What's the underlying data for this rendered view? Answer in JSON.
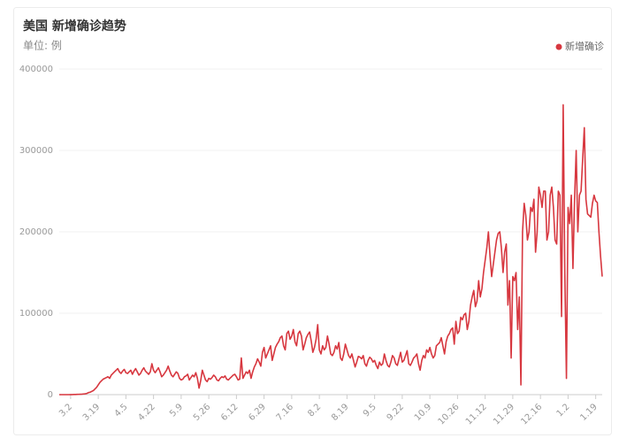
{
  "chart_data": {
    "type": "line",
    "title": "美国 新增确诊趋势",
    "subtitle": "单位: 例",
    "categories": [
      null,
      null,
      null,
      null,
      null,
      null,
      null,
      "3.2",
      null,
      null,
      null,
      null,
      null,
      null,
      null,
      null,
      null,
      null,
      null,
      null,
      null,
      null,
      null,
      null,
      "3.19",
      null,
      null,
      null,
      null,
      null,
      null,
      null,
      null,
      null,
      null,
      null,
      null,
      null,
      null,
      null,
      null,
      "4.5",
      null,
      null,
      null,
      null,
      null,
      null,
      null,
      null,
      null,
      null,
      null,
      null,
      null,
      null,
      null,
      null,
      "4.22",
      null,
      null,
      null,
      null,
      null,
      null,
      null,
      null,
      null,
      null,
      null,
      null,
      null,
      null,
      null,
      null,
      "5.9",
      null,
      null,
      null,
      null,
      null,
      null,
      null,
      null,
      null,
      null,
      null,
      null,
      null,
      null,
      null,
      null,
      "5.26",
      null,
      null,
      null,
      null,
      null,
      null,
      null,
      null,
      null,
      null,
      null,
      null,
      null,
      null,
      null,
      null,
      "6.12",
      null,
      null,
      null,
      null,
      null,
      null,
      null,
      null,
      null,
      null,
      null,
      null,
      null,
      null,
      null,
      null,
      "6.29",
      null,
      null,
      null,
      null,
      null,
      null,
      null,
      null,
      null,
      null,
      null,
      null,
      null,
      null,
      null,
      null,
      "7.16",
      null,
      null,
      null,
      null,
      null,
      null,
      null,
      null,
      null,
      null,
      null,
      null,
      null,
      null,
      null,
      null,
      "8.2",
      null,
      null,
      null,
      null,
      null,
      null,
      null,
      null,
      null,
      null,
      null,
      null,
      null,
      null,
      null,
      null,
      "8.19",
      null,
      null,
      null,
      null,
      null,
      null,
      null,
      null,
      null,
      null,
      null,
      null,
      null,
      null,
      null,
      null,
      "9.5",
      null,
      null,
      null,
      null,
      null,
      null,
      null,
      null,
      null,
      null,
      null,
      null,
      null,
      null,
      null,
      null,
      "9.22",
      null,
      null,
      null,
      null,
      null,
      null,
      null,
      null,
      null,
      null,
      null,
      null,
      null,
      null,
      null,
      null,
      "10.9",
      null,
      null,
      null,
      null,
      null,
      null,
      null,
      null,
      null,
      null,
      null,
      null,
      null,
      null,
      null,
      null,
      "10.26",
      null,
      null,
      null,
      null,
      null,
      null,
      null,
      null,
      null,
      null,
      null,
      null,
      null,
      null,
      null,
      null,
      "11.12",
      null,
      null,
      null,
      null,
      null,
      null,
      null,
      null,
      null,
      null,
      null,
      null,
      null,
      null,
      null,
      null,
      "11.29",
      null,
      null,
      null,
      null,
      null,
      null,
      null,
      null,
      null,
      null,
      null,
      null,
      null,
      null,
      null,
      null,
      "12.16",
      null,
      null,
      null,
      null,
      null,
      null,
      null,
      null,
      null,
      null,
      null,
      null,
      null,
      null,
      null,
      null,
      "1.2",
      null,
      null,
      null,
      null,
      null,
      null,
      null,
      null,
      null,
      null,
      null,
      null,
      null,
      null,
      null,
      null,
      "1.19",
      null,
      null,
      null,
      null
    ],
    "series": [
      {
        "name": "新增确诊",
        "color": "#d7373f",
        "values": [
          0,
          0,
          0,
          0,
          0,
          0,
          0,
          50,
          100,
          150,
          200,
          300,
          400,
          500,
          600,
          800,
          1000,
          1500,
          2500,
          3000,
          4000,
          5000,
          7000,
          9000,
          12000,
          15000,
          17000,
          19000,
          20000,
          21000,
          22000,
          20000,
          24000,
          26000,
          28000,
          30000,
          32000,
          28000,
          26000,
          29000,
          31000,
          27000,
          26000,
          28000,
          30000,
          25000,
          29000,
          32000,
          28000,
          24000,
          26000,
          30000,
          33000,
          29000,
          27000,
          25000,
          28000,
          38000,
          30000,
          27000,
          30000,
          33000,
          28000,
          22000,
          24000,
          27000,
          30000,
          35000,
          29000,
          24000,
          22000,
          25000,
          28000,
          26000,
          20000,
          18000,
          19000,
          22000,
          23000,
          25000,
          18000,
          21000,
          24000,
          22000,
          27000,
          20000,
          8000,
          17000,
          30000,
          24000,
          18000,
          16000,
          20000,
          19000,
          21000,
          24000,
          22000,
          18000,
          17000,
          20000,
          22000,
          21000,
          23000,
          19000,
          18000,
          20000,
          22000,
          24000,
          25000,
          22000,
          18000,
          19000,
          45000,
          20000,
          24000,
          28000,
          26000,
          30000,
          20000,
          28000,
          34000,
          38000,
          44000,
          40000,
          35000,
          52000,
          58000,
          45000,
          50000,
          55000,
          60000,
          42000,
          50000,
          58000,
          62000,
          65000,
          70000,
          72000,
          60000,
          55000,
          75000,
          78000,
          68000,
          72000,
          80000,
          65000,
          60000,
          75000,
          78000,
          72000,
          55000,
          62000,
          70000,
          74000,
          77000,
          66000,
          52000,
          58000,
          68000,
          86000,
          55000,
          50000,
          60000,
          55000,
          58000,
          72000,
          62000,
          50000,
          48000,
          52000,
          60000,
          56000,
          64000,
          45000,
          42000,
          50000,
          62000,
          55000,
          48000,
          45000,
          50000,
          42000,
          34000,
          40000,
          47000,
          46000,
          44000,
          48000,
          38000,
          35000,
          42000,
          46000,
          44000,
          40000,
          42000,
          36000,
          32000,
          40000,
          36000,
          38000,
          50000,
          42000,
          36000,
          34000,
          40000,
          48000,
          45000,
          38000,
          36000,
          44000,
          52000,
          40000,
          42000,
          48000,
          54000,
          38000,
          36000,
          40000,
          45000,
          47000,
          50000,
          38000,
          30000,
          42000,
          48000,
          45000,
          55000,
          52000,
          58000,
          50000,
          45000,
          48000,
          60000,
          62000,
          64000,
          70000,
          60000,
          50000,
          65000,
          72000,
          75000,
          80000,
          82000,
          62000,
          90000,
          75000,
          78000,
          95000,
          92000,
          98000,
          100000,
          80000,
          90000,
          110000,
          120000,
          128000,
          108000,
          115000,
          140000,
          120000,
          130000,
          150000,
          165000,
          180000,
          200000,
          170000,
          145000,
          160000,
          175000,
          190000,
          198000,
          200000,
          180000,
          150000,
          175000,
          185000,
          110000,
          140000,
          45000,
          145000,
          140000,
          150000,
          80000,
          120000,
          12000,
          200000,
          235000,
          220000,
          190000,
          200000,
          230000,
          225000,
          240000,
          175000,
          200000,
          255000,
          245000,
          230000,
          250000,
          250000,
          190000,
          200000,
          245000,
          255000,
          230000,
          190000,
          185000,
          250000,
          245000,
          96000,
          356000,
          150000,
          20000,
          230000,
          210000,
          245000,
          155000,
          240000,
          300000,
          200000,
          245000,
          250000,
          290000,
          328000,
          240000,
          222000,
          220000,
          218000,
          235000,
          245000,
          238000,
          236000,
          200000,
          170000,
          145000
        ]
      }
    ],
    "ylim": [
      0,
      400000
    ],
    "yticks": [
      0,
      100000,
      200000,
      300000,
      400000
    ],
    "grid": true,
    "legend": "top-right"
  }
}
